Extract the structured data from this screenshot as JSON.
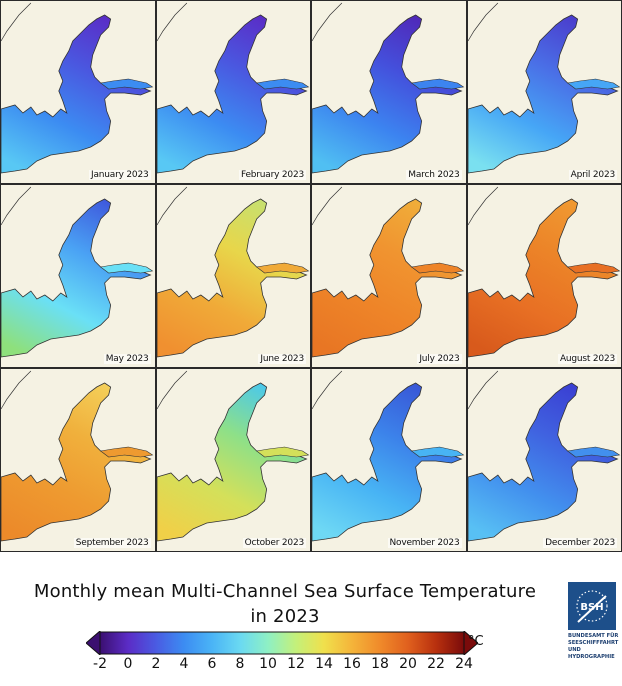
{
  "panels": [
    {
      "label": "January 2023",
      "colors": [
        "#5a2cc6",
        "#4a58e0",
        "#3c8cf2",
        "#58c8f4"
      ]
    },
    {
      "label": "February 2023",
      "colors": [
        "#5a2cc6",
        "#4a58e0",
        "#3c8cf2",
        "#58c8f4"
      ]
    },
    {
      "label": "March 2023",
      "colors": [
        "#5028b8",
        "#4450dc",
        "#3c84f0",
        "#50bff2"
      ]
    },
    {
      "label": "April 2023",
      "colors": [
        "#4a3ccc",
        "#4a6ee6",
        "#46a6f6",
        "#7ae0f0"
      ]
    },
    {
      "label": "May 2023",
      "colors": [
        "#3e58dc",
        "#4aa2f4",
        "#6ae0f6",
        "#8ee07c"
      ]
    },
    {
      "label": "June 2023",
      "colors": [
        "#c6e070",
        "#e8d64a",
        "#f0aa38",
        "#f09030"
      ]
    },
    {
      "label": "July 2023",
      "colors": [
        "#f0ae3a",
        "#f09430",
        "#ee8428",
        "#e87624"
      ]
    },
    {
      "label": "August 2023",
      "colors": [
        "#f09a32",
        "#ec8428",
        "#e87024",
        "#d85a1c"
      ]
    },
    {
      "label": "September 2023",
      "colors": [
        "#f4d05a",
        "#f0b03c",
        "#ee9a30",
        "#ec8a2a"
      ]
    },
    {
      "label": "October 2023",
      "colors": [
        "#4ac8ec",
        "#8ee088",
        "#d4e05a",
        "#f0d048"
      ]
    },
    {
      "label": "November 2023",
      "colors": [
        "#3856d6",
        "#3c82ea",
        "#48b4f4",
        "#6ed8f4"
      ]
    },
    {
      "label": "December 2023",
      "colors": [
        "#3a3ed2",
        "#4062e0",
        "#4290ee",
        "#58c0f4"
      ]
    }
  ],
  "title_line1": "Monthly mean Multi-Channel Sea Surface Temperature",
  "title_line2": "in 2023",
  "colorbar": {
    "ticks": [
      "-2",
      "0",
      "2",
      "4",
      "6",
      "8",
      "10",
      "12",
      "14",
      "16",
      "18",
      "20",
      "22",
      "24"
    ],
    "tick_values": [
      -2,
      0,
      2,
      4,
      6,
      8,
      10,
      12,
      14,
      16,
      18,
      20,
      22,
      24
    ],
    "range": [
      -2,
      24
    ],
    "unit": "°C",
    "colors": [
      "#3b0f70",
      "#5b2cc6",
      "#4a5be2",
      "#3c8cf2",
      "#4ab4f6",
      "#6ad9f2",
      "#8ef0c4",
      "#c4f07a",
      "#f0e04c",
      "#f4b43a",
      "#f08a2a",
      "#e0601e",
      "#b8300e",
      "#7a0b0b"
    ]
  },
  "logo": {
    "abbr": "BSH",
    "text_lines": [
      "BUNDESAMT FÜR",
      "SEESCHIFFFAHRT",
      "UND",
      "HYDROGRAPHIE"
    ],
    "color": "#1d4f8a"
  },
  "colors": {
    "land": "#f5f2e3",
    "coast": "#333333",
    "border": "#2a2a2a"
  }
}
